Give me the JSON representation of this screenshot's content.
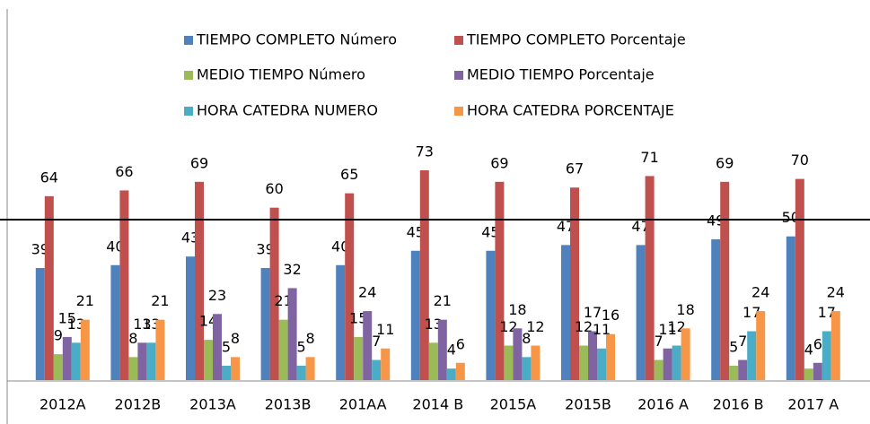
{
  "chart_data": {
    "type": "bar",
    "categories": [
      "2012A",
      "2012B",
      "2013A",
      "2013B",
      "201AA",
      "2014 B",
      "2015A",
      "2015B",
      "2016 A",
      "2016 B",
      "2017 A"
    ],
    "series": [
      {
        "name": "TIEMPO COMPLETO Número",
        "color": "#4f81bd",
        "values": [
          39,
          40,
          43,
          39,
          40,
          45,
          45,
          47,
          47,
          49,
          50
        ]
      },
      {
        "name": "TIEMPO COMPLETO Porcentaje",
        "color": "#c0504d",
        "values": [
          64,
          66,
          69,
          60,
          65,
          73,
          69,
          67,
          71,
          69,
          70
        ]
      },
      {
        "name": "MEDIO TIEMPO Número",
        "color": "#9bbb59",
        "values": [
          9,
          8,
          14,
          21,
          15,
          13,
          12,
          12,
          7,
          5,
          4
        ]
      },
      {
        "name": "MEDIO TIEMPO Porcentaje",
        "color": "#8064a2",
        "values": [
          15,
          13,
          23,
          32,
          24,
          21,
          18,
          17,
          11,
          7,
          6
        ]
      },
      {
        "name": "HORA CATEDRA NUMERO",
        "color": "#4bacc6",
        "values": [
          13,
          13,
          5,
          5,
          7,
          4,
          8,
          11,
          12,
          17,
          17
        ]
      },
      {
        "name": "HORA CATEDRA PORCENTAJE",
        "color": "#f79646",
        "values": [
          21,
          21,
          8,
          8,
          11,
          6,
          12,
          16,
          18,
          24,
          24
        ]
      }
    ]
  }
}
